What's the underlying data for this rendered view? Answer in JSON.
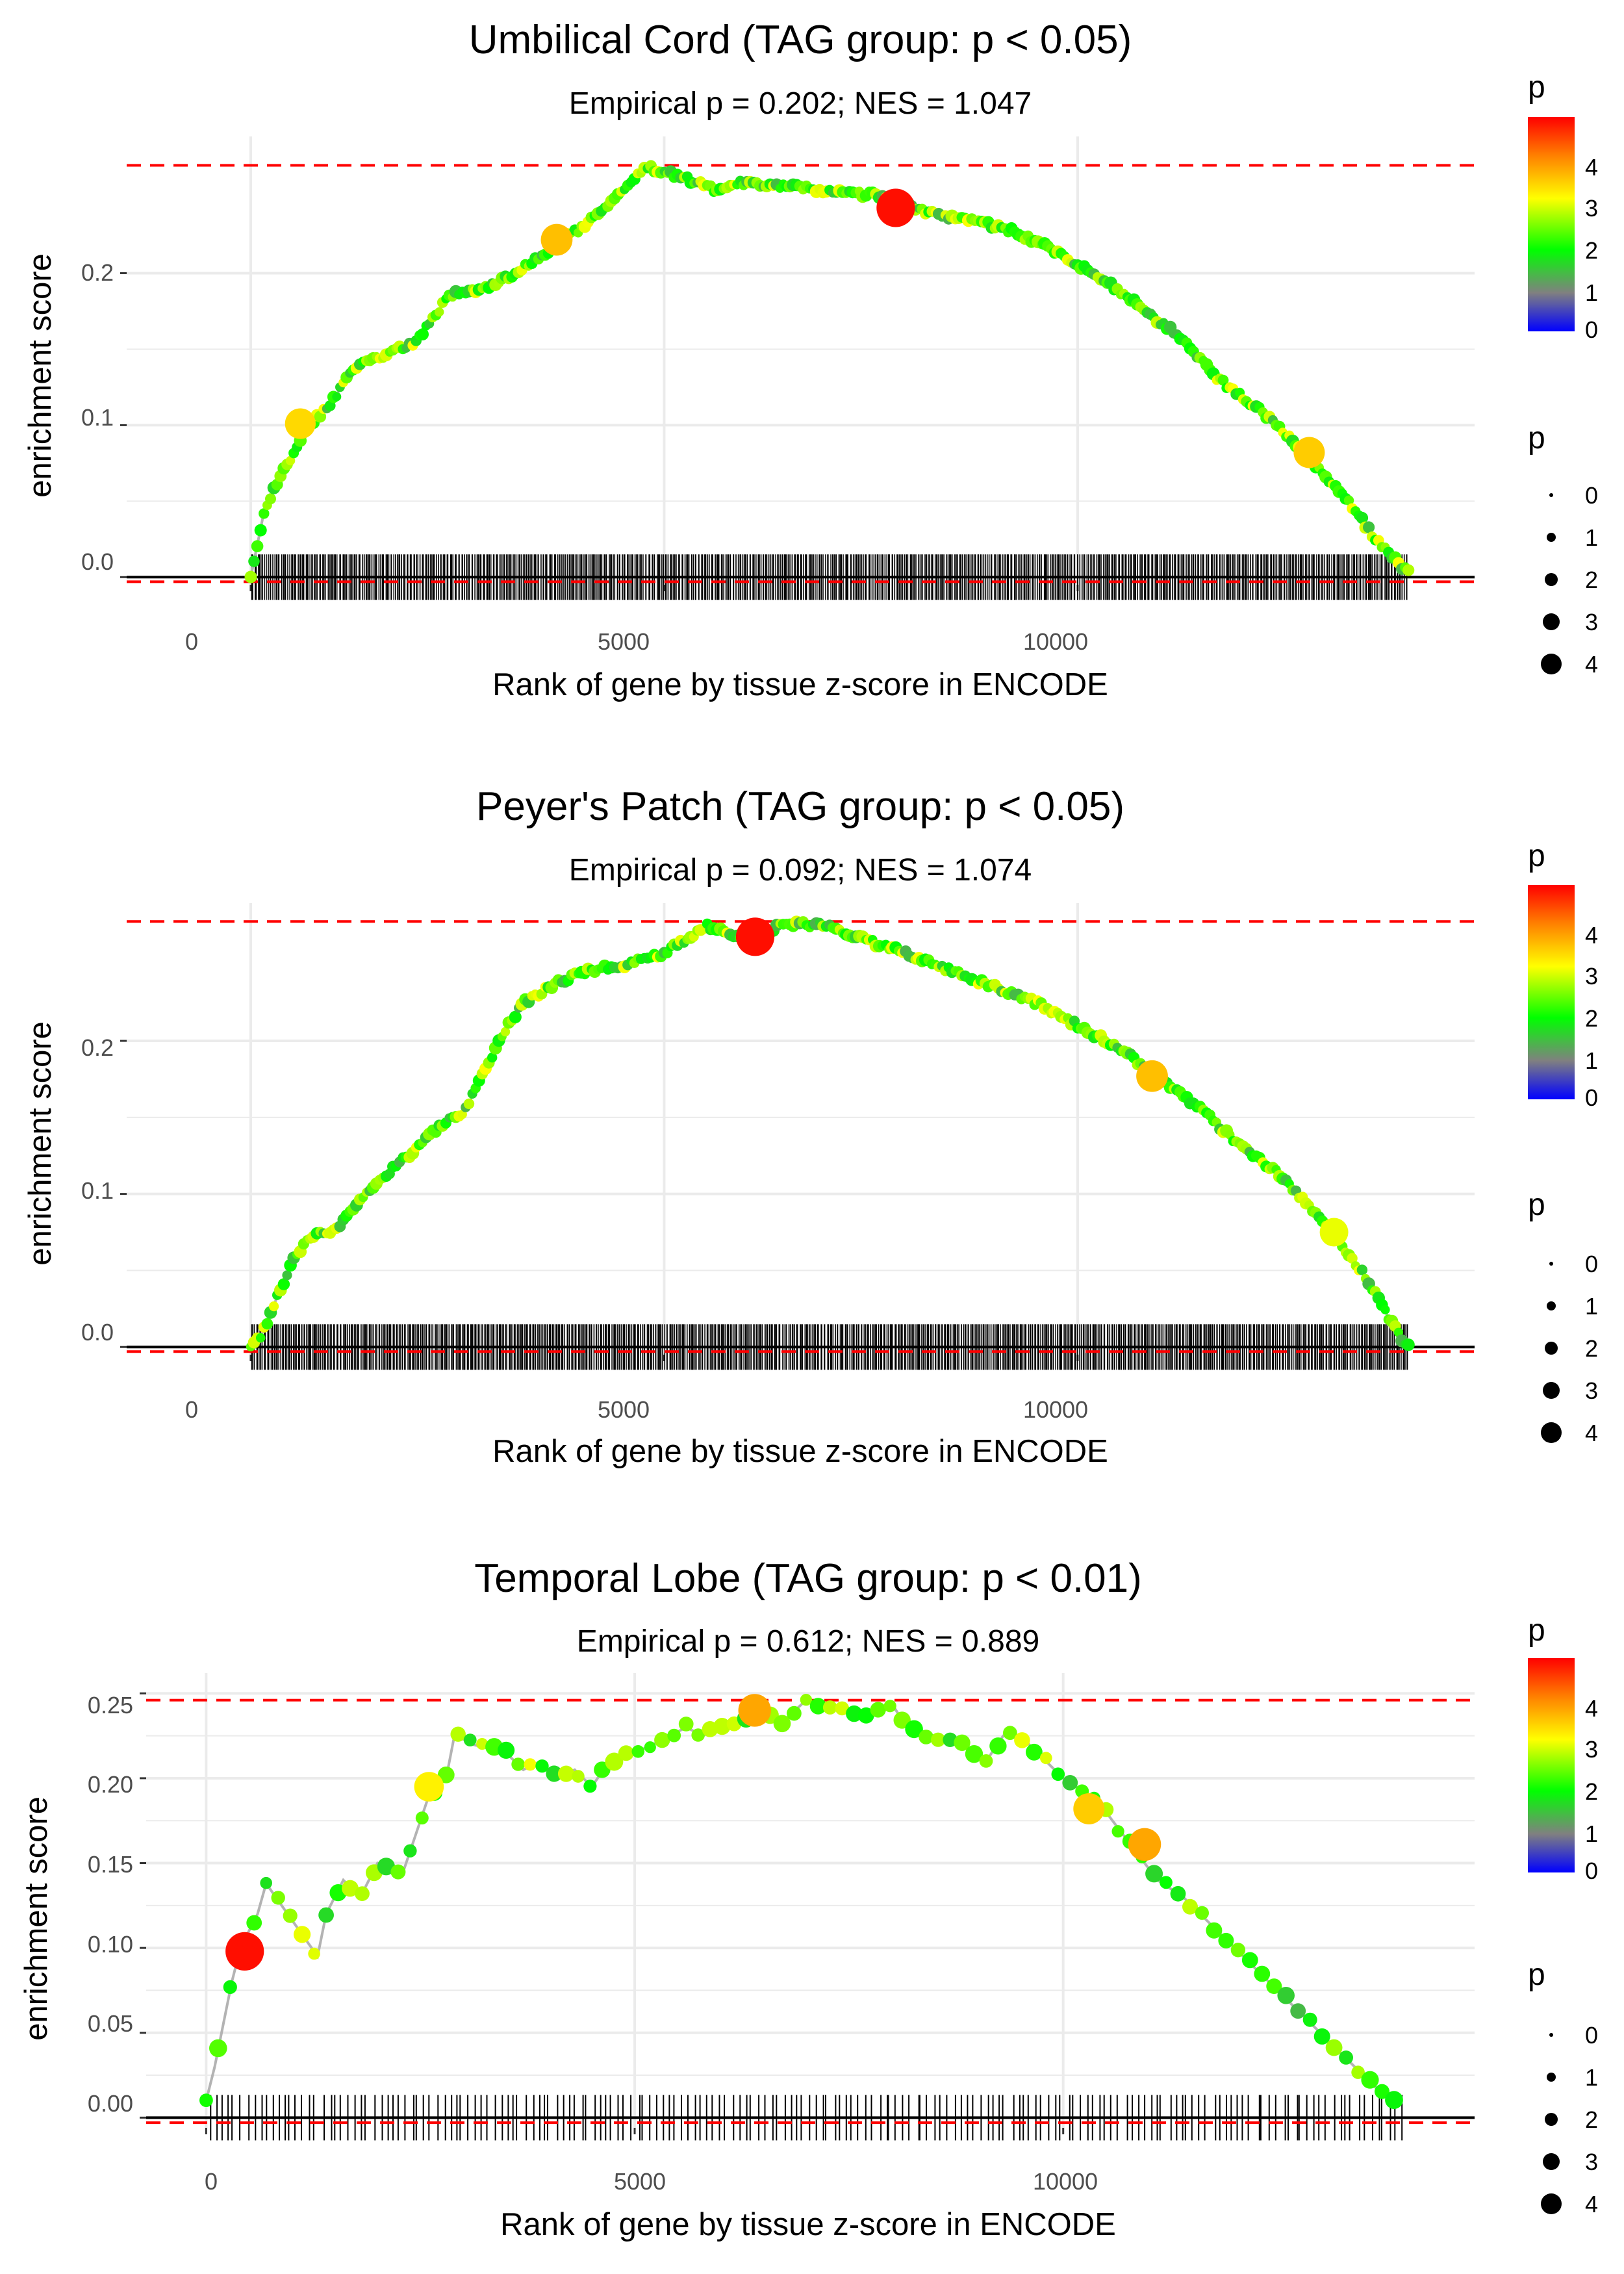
{
  "figure": {
    "colors": {
      "threshold_line": "#ff0000",
      "baseline": "#000000",
      "running_line": "#b3b3b3",
      "gridline": "#ebebeb",
      "hit_tick": "#000000",
      "gradient": [
        "#0000ff",
        "#808080",
        "#00ff00",
        "#ffff00",
        "#ff8000",
        "#ff0000"
      ]
    }
  },
  "chart_data": [
    {
      "type": "line",
      "title": "Umbilical Cord (TAG group: p < 0.05)",
      "subtitle": "Empirical p = 0.202; NES = 1.047",
      "xlabel": "Rank of gene by tissue z-score in ENCODE",
      "ylabel": "enrichment score",
      "xlim": [
        -1500,
        14800
      ],
      "ylim": [
        -0.005,
        0.29
      ],
      "x_ticks": [
        0,
        5000,
        10000
      ],
      "x_tick_labels": [
        "0",
        "5000",
        "10000"
      ],
      "y_ticks": [
        0.0,
        0.1,
        0.2
      ],
      "y_tick_labels": [
        "0.0",
        "0.1",
        "0.2"
      ],
      "max_es": 0.271,
      "min_es": -0.003,
      "n_genes": 14000,
      "hit_count": 700,
      "hit_density": "dense",
      "curve_x": [
        0,
        150,
        300,
        500,
        700,
        900,
        1100,
        1300,
        1600,
        2000,
        2400,
        2800,
        3200,
        3600,
        4000,
        4300,
        4600,
        4800,
        5000,
        5300,
        5600,
        6000,
        6500,
        7000,
        7500,
        7800,
        8200,
        8700,
        9200,
        9700,
        10200,
        10700,
        11200,
        11700,
        12200,
        12700,
        13200,
        13600,
        13900,
        14000
      ],
      "curve_y": [
        0.0,
        0.04,
        0.06,
        0.08,
        0.1,
        0.11,
        0.125,
        0.14,
        0.145,
        0.155,
        0.185,
        0.19,
        0.2,
        0.215,
        0.23,
        0.245,
        0.26,
        0.27,
        0.266,
        0.262,
        0.255,
        0.26,
        0.257,
        0.254,
        0.252,
        0.248,
        0.24,
        0.235,
        0.228,
        0.215,
        0.2,
        0.18,
        0.16,
        0.13,
        0.11,
        0.085,
        0.055,
        0.025,
        0.008,
        0.003
      ],
      "highlight_points": [
        {
          "x": 3700,
          "y": 0.222,
          "p": 3.6
        },
        {
          "x": 600,
          "y": 0.101,
          "p": 3.4
        },
        {
          "x": 7800,
          "y": 0.243,
          "p": 4.9
        },
        {
          "x": 12800,
          "y": 0.082,
          "p": 3.5
        }
      ],
      "legend": {
        "color_title": "p",
        "color_range": [
          0,
          5
        ],
        "color_ticks": [
          "0",
          "1",
          "2",
          "3",
          "4"
        ],
        "size_title": "p",
        "size_labels": [
          "0",
          "1",
          "2",
          "3",
          "4"
        ]
      }
    },
    {
      "type": "line",
      "title": "Peyer's Patch (TAG group: p < 0.05)",
      "subtitle": "Empirical p = 0.092; NES = 1.074",
      "xlabel": "Rank of gene by tissue z-score in ENCODE",
      "ylabel": "enrichment score",
      "xlim": [
        -1500,
        14800
      ],
      "ylim": [
        -0.005,
        0.29
      ],
      "x_ticks": [
        0,
        5000,
        10000
      ],
      "x_tick_labels": [
        "0",
        "5000",
        "10000"
      ],
      "y_ticks": [
        0.0,
        0.1,
        0.2
      ],
      "y_tick_labels": [
        "0.0",
        "0.1",
        "0.2"
      ],
      "max_es": 0.278,
      "min_es": -0.003,
      "n_genes": 14000,
      "hit_count": 720,
      "hit_density": "dense",
      "curve_x": [
        0,
        150,
        300,
        500,
        700,
        900,
        1100,
        1300,
        1600,
        2000,
        2300,
        2600,
        3000,
        3300,
        3600,
        4000,
        4500,
        5000,
        5500,
        5800,
        6100,
        6500,
        7000,
        7500,
        8000,
        8500,
        9000,
        9500,
        10000,
        10500,
        11000,
        11500,
        12000,
        12500,
        13000,
        13500,
        13800,
        14000
      ],
      "curve_y": [
        0.0,
        0.01,
        0.03,
        0.055,
        0.07,
        0.075,
        0.08,
        0.095,
        0.11,
        0.13,
        0.145,
        0.155,
        0.2,
        0.225,
        0.235,
        0.245,
        0.25,
        0.257,
        0.275,
        0.27,
        0.268,
        0.277,
        0.275,
        0.265,
        0.255,
        0.245,
        0.235,
        0.225,
        0.21,
        0.195,
        0.175,
        0.155,
        0.13,
        0.11,
        0.08,
        0.045,
        0.015,
        0.0
      ],
      "highlight_points": [
        {
          "x": 6100,
          "y": 0.268,
          "p": 4.9
        },
        {
          "x": 10900,
          "y": 0.177,
          "p": 3.6
        },
        {
          "x": 13100,
          "y": 0.075,
          "p": 3.0
        }
      ],
      "legend": {
        "color_title": "p",
        "color_range": [
          0,
          5
        ],
        "color_ticks": [
          "0",
          "1",
          "2",
          "3",
          "4"
        ],
        "size_title": "p",
        "size_labels": [
          "0",
          "1",
          "2",
          "3",
          "4"
        ]
      }
    },
    {
      "type": "line",
      "title": "Temporal Lobe (TAG group: p < 0.01)",
      "subtitle": "Empirical p = 0.612; NES = 0.889",
      "xlabel": "Rank of gene by tissue z-score in ENCODE",
      "ylabel": "enrichment score",
      "xlim": [
        -700,
        14800
      ],
      "ylim": [
        -0.006,
        0.262
      ],
      "x_ticks": [
        0,
        5000,
        10000
      ],
      "x_tick_labels": [
        "0",
        "5000",
        "10000"
      ],
      "y_ticks": [
        0.0,
        0.05,
        0.1,
        0.15,
        0.2,
        0.25
      ],
      "y_tick_labels": [
        "0.00",
        "0.05",
        "0.10",
        "0.15",
        "0.20",
        "0.25"
      ],
      "max_es": 0.246,
      "min_es": -0.003,
      "n_genes": 14000,
      "hit_count": 190,
      "hit_density": "sparse",
      "curve_x": [
        0,
        100,
        200,
        300,
        400,
        500,
        600,
        700,
        1300,
        1400,
        1600,
        1800,
        2000,
        2300,
        2600,
        2800,
        2900,
        3100,
        3500,
        3700,
        3900,
        4100,
        4300,
        4500,
        4700,
        5000,
        5300,
        5600,
        5800,
        6000,
        6300,
        6500,
        6700,
        7000,
        7200,
        7500,
        7800,
        8000,
        8200,
        8500,
        8800,
        9100,
        9300,
        9500,
        9700,
        10000,
        10300,
        10500,
        10800,
        11100,
        11400,
        11700,
        12000,
        12300,
        12600,
        12900,
        13200,
        13500,
        13700,
        13900
      ],
      "curve_y": [
        0.01,
        0.03,
        0.055,
        0.08,
        0.1,
        0.11,
        0.12,
        0.138,
        0.095,
        0.12,
        0.14,
        0.13,
        0.15,
        0.145,
        0.19,
        0.2,
        0.226,
        0.22,
        0.215,
        0.205,
        0.21,
        0.2,
        0.205,
        0.195,
        0.21,
        0.215,
        0.222,
        0.23,
        0.225,
        0.232,
        0.235,
        0.238,
        0.232,
        0.246,
        0.242,
        0.24,
        0.238,
        0.244,
        0.228,
        0.225,
        0.22,
        0.21,
        0.225,
        0.225,
        0.215,
        0.2,
        0.19,
        0.18,
        0.16,
        0.14,
        0.13,
        0.115,
        0.1,
        0.085,
        0.07,
        0.055,
        0.04,
        0.025,
        0.015,
        0.007
      ],
      "highlight_points": [
        {
          "x": 450,
          "y": 0.098,
          "p": 4.9
        },
        {
          "x": 6400,
          "y": 0.24,
          "p": 3.8
        },
        {
          "x": 10300,
          "y": 0.182,
          "p": 3.5
        },
        {
          "x": 10950,
          "y": 0.161,
          "p": 3.8
        },
        {
          "x": 2600,
          "y": 0.195,
          "p": 3.2
        }
      ],
      "legend": {
        "color_title": "p",
        "color_range": [
          0,
          5
        ],
        "color_ticks": [
          "0",
          "1",
          "2",
          "3",
          "4"
        ],
        "size_title": "p",
        "size_labels": [
          "0",
          "1",
          "2",
          "3",
          "4"
        ]
      }
    }
  ]
}
